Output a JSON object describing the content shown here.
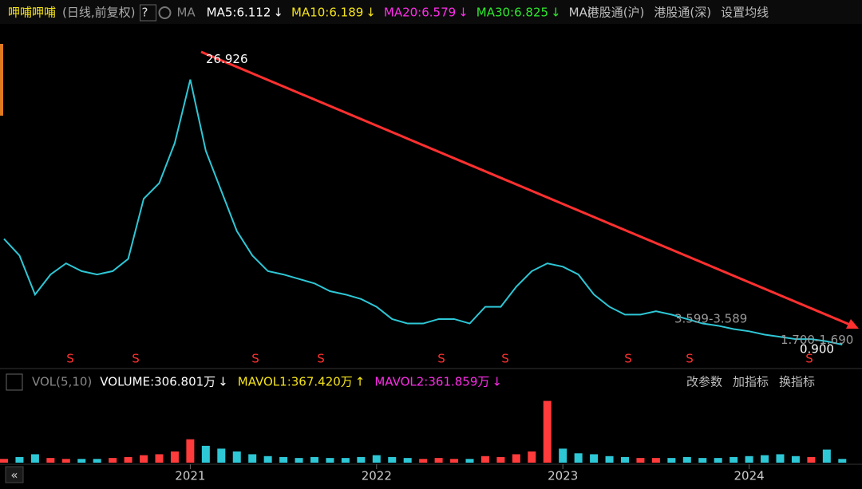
{
  "header": {
    "title": "呷哺呷哺",
    "period": "(日线,前复权)",
    "help": "?",
    "indicator": "MA",
    "ma": [
      {
        "label": "MA5:6.112",
        "arrow": "↓",
        "color": "#ffffff"
      },
      {
        "label": "MA10:6.189",
        "arrow": "↓",
        "color": "#f5e31b"
      },
      {
        "label": "MA20:6.579",
        "arrow": "↓",
        "color": "#ff2dea"
      },
      {
        "label": "MA30:6.825",
        "arrow": "↓",
        "color": "#2ee82e"
      }
    ],
    "truncated": "MA(",
    "links": [
      "港股通(沪)",
      "港股通(深)",
      "设置均线"
    ]
  },
  "volume_header": {
    "indicator": "VOL(5,10)",
    "items": [
      {
        "label": "VOLUME:306.801万",
        "arrow": "↓",
        "color": "#ffffff"
      },
      {
        "label": "MAVOL1:367.420万",
        "arrow": "↑",
        "color": "#f5e31b"
      },
      {
        "label": "MAVOL2:361.859万",
        "arrow": "↓",
        "color": "#ff2dea"
      }
    ],
    "buttons": [
      "改参数",
      "加指标",
      "换指标"
    ]
  },
  "chart_data": [
    {
      "type": "line",
      "categories": [
        null,
        null,
        null,
        null,
        null,
        null,
        null,
        null,
        null,
        null,
        null,
        null,
        "2021",
        null,
        null,
        null,
        null,
        null,
        null,
        null,
        null,
        null,
        null,
        null,
        "2022",
        null,
        null,
        null,
        null,
        null,
        null,
        null,
        null,
        null,
        null,
        null,
        "2023",
        null,
        null,
        null,
        null,
        null,
        null,
        null,
        null,
        null,
        null,
        null,
        "2024",
        null,
        null,
        null,
        null,
        null,
        null
      ],
      "values": [
        10.1,
        8.6,
        5.1,
        6.9,
        7.9,
        7.2,
        6.9,
        7.2,
        8.3,
        13.7,
        15.1,
        18.7,
        24.4,
        18,
        14.4,
        10.8,
        8.6,
        7.2,
        6.9,
        6.5,
        6.1,
        5.4,
        5.1,
        4.7,
        4,
        2.9,
        2.5,
        2.5,
        2.9,
        2.9,
        2.5,
        4,
        4,
        5.8,
        7.2,
        7.9,
        7.6,
        6.9,
        5.1,
        4,
        3.3,
        3.3,
        3.6,
        3.3,
        2.9,
        2.5,
        2.3,
        2,
        1.8,
        1.5,
        1.3,
        1.1,
        1.1,
        0.9,
        0.6
      ],
      "color": "#2ec7d6",
      "ylim": [
        -1.4,
        27.6
      ],
      "price_labels": [
        {
          "value": 26.926,
          "label": "26.926"
        },
        {
          "value": 3.599,
          "label": "3.599-3.589"
        },
        {
          "value": 1.7,
          "label": "1.700-1.690"
        },
        {
          "value": 0.9,
          "label": "0.900"
        }
      ]
    },
    {
      "type": "bar",
      "categories": [
        null,
        null,
        null,
        null,
        null,
        null,
        null,
        null,
        null,
        null,
        null,
        null,
        "2021",
        null,
        null,
        null,
        null,
        null,
        null,
        null,
        null,
        null,
        null,
        null,
        "2022",
        null,
        null,
        null,
        null,
        null,
        null,
        null,
        null,
        null,
        null,
        null,
        "2023",
        null,
        null,
        null,
        null,
        null,
        null,
        null,
        null,
        null,
        null,
        null,
        "2024",
        null,
        null,
        null,
        null,
        null,
        null
      ],
      "values": [
        400,
        600,
        900,
        500,
        400,
        400,
        400,
        500,
        600,
        800,
        900,
        1200,
        2500,
        1800,
        1500,
        1200,
        900,
        700,
        600,
        500,
        600,
        500,
        500,
        600,
        800,
        600,
        500,
        400,
        500,
        400,
        400,
        700,
        600,
        900,
        1200,
        6600,
        1500,
        1000,
        900,
        700,
        600,
        500,
        500,
        500,
        600,
        500,
        500,
        600,
        700,
        800,
        900,
        700,
        600,
        1400,
        400
      ],
      "up_color": "#ff3b3b",
      "down_color": "#2ec7d6",
      "ylim": [
        0,
        7500
      ]
    }
  ]
}
